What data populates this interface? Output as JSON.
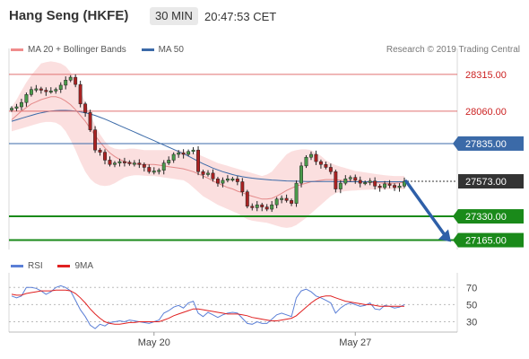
{
  "header": {
    "title": "Hang Seng (HKFE)",
    "timeframe": "30 MIN",
    "time": "20:47:53 CET"
  },
  "legend": {
    "bollinger_label": "MA 20 + Bollinger Bands",
    "ma50_label": "MA 50",
    "bollinger_color": "#f08c8c",
    "ma50_color": "#3b6aa8"
  },
  "research_credit": "Research © 2019 Trading Central",
  "rsi_legend": {
    "rsi_label": "RSI",
    "ma9_label": "9MA",
    "rsi_color": "#5b7fd6",
    "ma9_color": "#e02020"
  },
  "chart_data": [
    {
      "type": "candlestick",
      "title": "",
      "xlabel": "",
      "ylabel": "",
      "x_tick_labels": [
        "May 20",
        "May 27"
      ],
      "ylim": [
        27100,
        28420
      ],
      "levels": [
        {
          "value": 28315.0,
          "label": "28315.00",
          "color": "#e07070",
          "style": "resistance"
        },
        {
          "value": 28060.0,
          "label": "28060.00",
          "color": "#e07070",
          "style": "resistance"
        },
        {
          "value": 27835.0,
          "label": "27835.00",
          "color": "#3b6aa8",
          "style": "pivot"
        },
        {
          "value": 27573.0,
          "label": "27573.00",
          "color": "#333333",
          "style": "current"
        },
        {
          "value": 27330.0,
          "label": "27330.00",
          "color": "#1a8a1a",
          "style": "support"
        },
        {
          "value": 27165.0,
          "label": "27165.00",
          "color": "#1a8a1a",
          "style": "support"
        }
      ],
      "forecast_arrow": {
        "from": 27573.0,
        "to": 27165.0,
        "color": "#2e5fa8"
      },
      "close_series": [
        28080,
        28090,
        28120,
        28175,
        28210,
        28215,
        28205,
        28195,
        28200,
        28210,
        28240,
        28275,
        28295,
        28245,
        28110,
        28050,
        27930,
        27790,
        27775,
        27720,
        27690,
        27700,
        27710,
        27705,
        27695,
        27700,
        27690,
        27670,
        27640,
        27645,
        27650,
        27700,
        27720,
        27760,
        27770,
        27760,
        27780,
        27790,
        27640,
        27620,
        27630,
        27590,
        27560,
        27580,
        27590,
        27590,
        27570,
        27500,
        27400,
        27390,
        27410,
        27395,
        27380,
        27410,
        27450,
        27455,
        27440,
        27420,
        27560,
        27680,
        27740,
        27760,
        27710,
        27690,
        27670,
        27640,
        27520,
        27560,
        27590,
        27600,
        27580,
        27560,
        27565,
        27575,
        27540,
        27530,
        27555,
        27545,
        27530,
        27540,
        27573
      ],
      "bollinger_middle": [
        28000,
        28030,
        28060,
        28085,
        28110,
        28125,
        28140,
        28150,
        28160,
        28160,
        28150,
        28130,
        28105,
        28070,
        28030,
        27990,
        27940,
        27890,
        27845,
        27805,
        27770,
        27745,
        27725,
        27710,
        27700,
        27695,
        27690,
        27690,
        27690,
        27690,
        27685,
        27680,
        27675,
        27670,
        27665,
        27660,
        27650,
        27640,
        27625,
        27610,
        27595,
        27575,
        27560,
        27545,
        27530,
        27520,
        27505,
        27495,
        27480,
        27470,
        27460,
        27450,
        27450,
        27455,
        27470,
        27490,
        27510,
        27525,
        27540,
        27550,
        27560,
        27570,
        27575,
        27580,
        27585,
        27585,
        27585,
        27580,
        27578,
        27575,
        27572,
        27570,
        27568,
        27566,
        27564,
        27562,
        27560,
        27560,
        27560,
        27562,
        27565
      ],
      "bollinger_upper": [
        28090,
        28140,
        28200,
        28260,
        28310,
        28350,
        28390,
        28400,
        28405,
        28400,
        28390,
        28370,
        28330,
        28270,
        28200,
        28120,
        28040,
        27960,
        27900,
        27850,
        27815,
        27800,
        27795,
        27795,
        27800,
        27800,
        27795,
        27790,
        27790,
        27790,
        27790,
        27790,
        27790,
        27790,
        27790,
        27785,
        27780,
        27770,
        27760,
        27745,
        27730,
        27715,
        27700,
        27690,
        27680,
        27670,
        27660,
        27650,
        27640,
        27630,
        27620,
        27610,
        27620,
        27640,
        27680,
        27720,
        27760,
        27780,
        27790,
        27795,
        27795,
        27790,
        27770,
        27750,
        27720,
        27700,
        27685,
        27675,
        27665,
        27655,
        27645,
        27640,
        27635,
        27630,
        27625,
        27620,
        27615,
        27612,
        27610,
        27610,
        27610
      ],
      "bollinger_lower": [
        27920,
        27930,
        27940,
        27950,
        27960,
        27970,
        27980,
        27985,
        27985,
        27980,
        27960,
        27920,
        27860,
        27790,
        27710,
        27640,
        27590,
        27560,
        27545,
        27540,
        27545,
        27560,
        27580,
        27600,
        27610,
        27615,
        27615,
        27612,
        27610,
        27610,
        27605,
        27600,
        27595,
        27590,
        27585,
        27580,
        27560,
        27530,
        27500,
        27470,
        27450,
        27430,
        27410,
        27395,
        27380,
        27365,
        27350,
        27330,
        27310,
        27300,
        27295,
        27290,
        27285,
        27275,
        27265,
        27255,
        27250,
        27255,
        27270,
        27295,
        27320,
        27350,
        27380,
        27410,
        27440,
        27470,
        27490,
        27500,
        27505,
        27508,
        27510,
        27512,
        27514,
        27516,
        27518,
        27518,
        27518,
        27518,
        27518,
        27518,
        27518
      ],
      "ma50": [
        27990,
        28000,
        28010,
        28020,
        28030,
        28040,
        28048,
        28055,
        28060,
        28063,
        28065,
        28065,
        28063,
        28060,
        28055,
        28048,
        28040,
        28030,
        28018,
        28005,
        27990,
        27975,
        27960,
        27945,
        27930,
        27915,
        27900,
        27885,
        27870,
        27855,
        27840,
        27825,
        27810,
        27795,
        27780,
        27765,
        27748,
        27730,
        27712,
        27695,
        27680,
        27665,
        27652,
        27640,
        27630,
        27620,
        27612,
        27605,
        27600,
        27595,
        27591,
        27588,
        27585,
        27582,
        27580,
        27578,
        27576,
        27575,
        27574,
        27573,
        27572,
        27572,
        27572,
        27572,
        27572,
        27572,
        27571,
        27571,
        27570,
        27570,
        27570,
        27570,
        27570,
        27570,
        27570,
        27570,
        27570,
        27570,
        27570,
        27570,
        27570
      ]
    },
    {
      "type": "line",
      "title": "",
      "ylim": [
        20,
        85
      ],
      "y_tick_labels": [
        "70",
        "50",
        "30"
      ],
      "reference_levels": [
        70,
        50,
        30
      ],
      "series": [
        {
          "name": "RSI",
          "values": [
            60,
            58,
            60,
            70,
            70,
            69,
            66,
            62,
            65,
            70,
            72,
            70,
            66,
            55,
            44,
            36,
            26,
            22,
            27,
            25,
            29,
            30,
            31,
            30,
            32,
            31,
            30,
            29,
            28,
            30,
            32,
            40,
            43,
            47,
            49,
            46,
            52,
            54,
            40,
            36,
            41,
            38,
            35,
            38,
            40,
            41,
            40,
            34,
            28,
            27,
            30,
            28,
            28,
            33,
            38,
            40,
            38,
            36,
            58,
            66,
            68,
            65,
            60,
            58,
            55,
            52,
            40,
            46,
            50,
            52,
            50,
            48,
            49,
            52,
            45,
            44,
            49,
            48,
            46,
            47,
            50
          ]
        },
        {
          "name": "9MA",
          "values": [
            62,
            61,
            61,
            63,
            64,
            65,
            66,
            66,
            66,
            67,
            67,
            67,
            66,
            63,
            58,
            52,
            45,
            39,
            34,
            30,
            28,
            27,
            27,
            28,
            29,
            29,
            30,
            30,
            30,
            30,
            30,
            32,
            34,
            37,
            39,
            41,
            43,
            45,
            45,
            44,
            43,
            42,
            41,
            40,
            39,
            39,
            39,
            38,
            37,
            35,
            34,
            33,
            32,
            31,
            31,
            32,
            33,
            34,
            37,
            42,
            47,
            52,
            56,
            59,
            60,
            60,
            58,
            56,
            54,
            53,
            52,
            51,
            50,
            50,
            49,
            48,
            48,
            48,
            48,
            48,
            48
          ]
        }
      ]
    }
  ]
}
